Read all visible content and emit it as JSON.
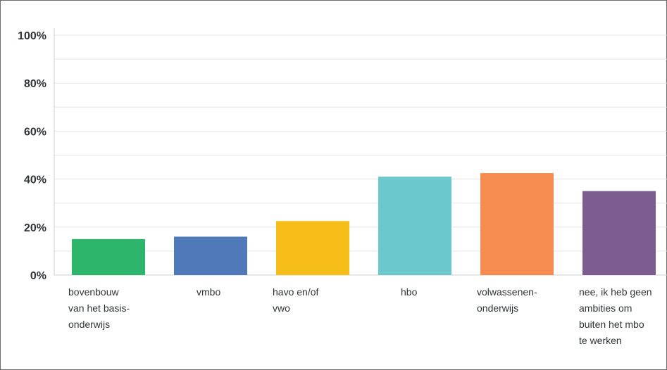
{
  "chart_data": {
    "type": "bar",
    "ylim": [
      0,
      100
    ],
    "yticks": [
      0,
      20,
      40,
      60,
      80,
      100
    ],
    "ytick_labels": [
      "0%",
      "20%",
      "40%",
      "60%",
      "80%",
      "100%"
    ],
    "minor_grid_step": 10,
    "grid": true,
    "categories": [
      [
        "bovenbouw",
        "van het basis-",
        "onderwijs"
      ],
      [
        "vmbo"
      ],
      [
        "havo en/of",
        "vwo"
      ],
      [
        "hbo"
      ],
      [
        "volwassenen-",
        "onderwijs"
      ],
      [
        "nee, ik heb geen",
        "ambities om",
        "buiten het mbo",
        "te werken"
      ]
    ],
    "values": [
      15,
      16,
      22.5,
      41,
      42.5,
      35
    ],
    "colors": [
      "#2db56b",
      "#4f79b8",
      "#f7bd18",
      "#6bc9cd",
      "#f78c50",
      "#7d5d8f"
    ]
  }
}
